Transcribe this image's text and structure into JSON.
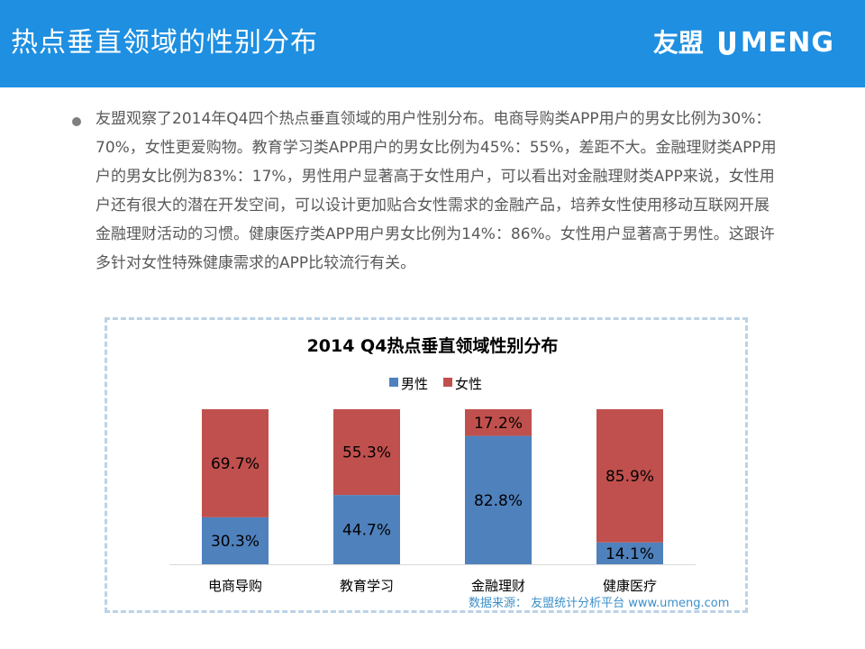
{
  "header": {
    "title": "热点垂直领域的性别分布",
    "logo_cn": "友盟",
    "logo_en": "MENG",
    "brand_color": "#1e8fe1"
  },
  "body": {
    "paragraph": "友盟观察了2014年Q4四个热点垂直领域的用户性别分布。电商导购类APP用户的男女比例为30%：70%，女性更爱购物。教育学习类APP用户的男女比例为45%：55%，差距不大。金融理财类APP用户的男女比例为83%：17%，男性用户显著高于女性用户，可以看出对金融理财类APP来说，女性用户还有很大的潜在开发空间，可以设计更加贴合女性需求的金融产品，培养女性使用移动互联网开展金融理财活动的习惯。健康医疗类APP用户男女比例为14%：86%。女性用户显著高于男性。这跟许多针对女性特殊健康需求的APP比较流行有关。"
  },
  "chart_data": {
    "type": "bar",
    "stacked": true,
    "percent": true,
    "title": "2014 Q4热点垂直领域性别分布",
    "categories": [
      "电商导购",
      "教育学习",
      "金融理财",
      "健康医疗"
    ],
    "series": [
      {
        "name": "男性",
        "color": "#4f81bd",
        "values": [
          30.3,
          44.7,
          82.8,
          14.1
        ],
        "labels": [
          "30.3%",
          "44.7%",
          "82.8%",
          "14.1%"
        ]
      },
      {
        "name": "女性",
        "color": "#c0504d",
        "values": [
          69.7,
          55.3,
          17.2,
          85.9
        ],
        "labels": [
          "69.7%",
          "55.3%",
          "17.2%",
          "85.9%"
        ]
      }
    ],
    "legend_position": "top",
    "ylim": [
      0,
      100
    ],
    "source": "数据来源： 友盟统计分析平台 www.umeng.com"
  }
}
